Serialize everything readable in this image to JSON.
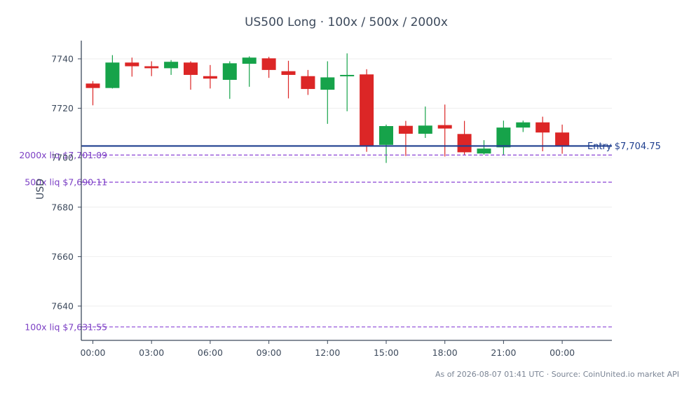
{
  "chart_data": {
    "type": "candlestick",
    "title": "US500 Long · 100x / 500x / 2000x",
    "ylabel": "USD",
    "xlabel": "",
    "ylim": [
      7626,
      7748
    ],
    "yticks": [
      7640,
      7660,
      7680,
      7700,
      7720,
      7740
    ],
    "x_ticks": [
      {
        "label": "00:00",
        "index": 0
      },
      {
        "label": "03:00",
        "index": 3
      },
      {
        "label": "06:00",
        "index": 6
      },
      {
        "label": "09:00",
        "index": 9
      },
      {
        "label": "12:00",
        "index": 12
      },
      {
        "label": "15:00",
        "index": 15
      },
      {
        "label": "18:00",
        "index": 18
      },
      {
        "label": "21:00",
        "index": 21
      },
      {
        "label": "00:00",
        "index": 24
      }
    ],
    "grid": "horizontal",
    "colors": {
      "up": "#16a34a",
      "down": "#dc2626",
      "entry": "#1f3f8f",
      "liq": "#8b45d6",
      "axis": "#3d4a5c",
      "grid": "#eeeeee"
    },
    "candles": [
      {
        "open": 7730.0,
        "high": 7731.0,
        "low": 7721.2,
        "close": 7728.2
      },
      {
        "open": 7728.2,
        "high": 7741.5,
        "low": 7728.0,
        "close": 7738.5
      },
      {
        "open": 7738.5,
        "high": 7740.5,
        "low": 7732.8,
        "close": 7737.0
      },
      {
        "open": 7737.0,
        "high": 7739.0,
        "low": 7733.0,
        "close": 7736.2
      },
      {
        "open": 7736.2,
        "high": 7739.5,
        "low": 7733.5,
        "close": 7738.8
      },
      {
        "open": 7738.5,
        "high": 7739.0,
        "low": 7727.5,
        "close": 7733.5
      },
      {
        "open": 7733.0,
        "high": 7737.5,
        "low": 7728.0,
        "close": 7732.0
      },
      {
        "open": 7731.5,
        "high": 7739.0,
        "low": 7723.8,
        "close": 7738.2
      },
      {
        "open": 7738.0,
        "high": 7741.0,
        "low": 7728.7,
        "close": 7740.5
      },
      {
        "open": 7740.2,
        "high": 7740.8,
        "low": 7732.3,
        "close": 7735.5
      },
      {
        "open": 7735.0,
        "high": 7739.2,
        "low": 7724.0,
        "close": 7733.5
      },
      {
        "open": 7733.0,
        "high": 7735.5,
        "low": 7725.4,
        "close": 7727.8
      },
      {
        "open": 7727.5,
        "high": 7739.0,
        "low": 7713.7,
        "close": 7732.5
      },
      {
        "open": 7733.0,
        "high": 7742.2,
        "low": 7718.8,
        "close": 7733.5
      },
      {
        "open": 7733.7,
        "high": 7735.8,
        "low": 7702.4,
        "close": 7705.0
      },
      {
        "open": 7705.2,
        "high": 7713.4,
        "low": 7697.9,
        "close": 7712.8
      },
      {
        "open": 7712.9,
        "high": 7714.9,
        "low": 7700.7,
        "close": 7709.7
      },
      {
        "open": 7709.7,
        "high": 7720.7,
        "low": 7708.0,
        "close": 7713.0
      },
      {
        "open": 7713.2,
        "high": 7721.5,
        "low": 7700.5,
        "close": 7711.8
      },
      {
        "open": 7709.6,
        "high": 7714.9,
        "low": 7700.9,
        "close": 7702.2
      },
      {
        "open": 7701.7,
        "high": 7707.1,
        "low": 7701.2,
        "close": 7703.7
      },
      {
        "open": 7704.2,
        "high": 7715.0,
        "low": 7701.0,
        "close": 7712.2
      },
      {
        "open": 7712.2,
        "high": 7715.0,
        "low": 7710.4,
        "close": 7714.3
      },
      {
        "open": 7714.3,
        "high": 7716.6,
        "low": 7702.6,
        "close": 7710.2
      },
      {
        "open": 7710.2,
        "high": 7713.4,
        "low": 7701.6,
        "close": 7704.6
      }
    ],
    "entry": {
      "value": 7704.75,
      "label": "Entry $7,704.75"
    },
    "liquidations": [
      {
        "value": 7701.09,
        "label": "2000x liq $7,701.09"
      },
      {
        "value": 7690.11,
        "label": "500x liq $7,690.11"
      },
      {
        "value": 7631.55,
        "label": "100x liq $7,631.55"
      }
    ],
    "footer": "As of 2026-08-07 01:41 UTC · Source: CoinUnited.io market API"
  }
}
